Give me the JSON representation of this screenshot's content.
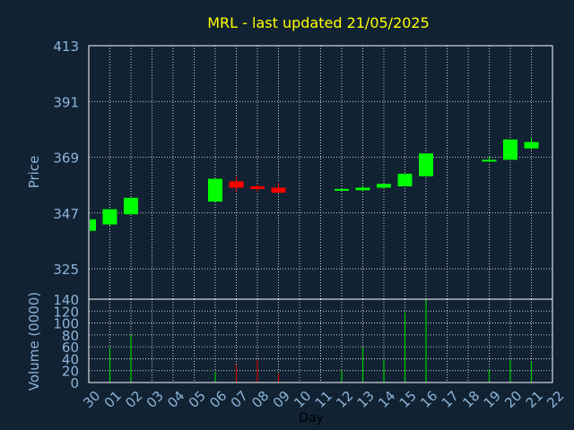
{
  "colors": {
    "background": "#112233",
    "frame": "#ffffff",
    "grid": "#ffffff",
    "title": "#ffff00",
    "label": "#8cb4d8",
    "xlabel": "#000000",
    "up": "#00ff00",
    "down": "#ff0000",
    "volume_up": "#00cc00",
    "volume_down": "#cc0000"
  },
  "chart_data": [
    {
      "type": "candlestick",
      "title": "MRL - last updated 21/05/2025",
      "ylabel": "Price",
      "ylim": [
        313,
        413
      ],
      "yticks": [
        413,
        391,
        369,
        347,
        325
      ],
      "grid": true,
      "x_tick_labels": [
        "30",
        "01",
        "02",
        "03",
        "04",
        "05",
        "06",
        "07",
        "08",
        "09",
        "10",
        "11",
        "12",
        "13",
        "14",
        "15",
        "16",
        "17",
        "18",
        "19",
        "20",
        "21",
        "22"
      ],
      "candles": [
        {
          "x": "30",
          "open": 340.0,
          "close": 344.5,
          "high": 344.5,
          "low": 340.0
        },
        {
          "x": "01",
          "open": 342.5,
          "close": 348.5,
          "high": 348.5,
          "low": 342.0
        },
        {
          "x": "02",
          "open": 346.5,
          "close": 353.0,
          "high": 353.0,
          "low": 346.5
        },
        {
          "x": "06",
          "open": 351.5,
          "close": 360.5,
          "high": 360.5,
          "low": 351.5
        },
        {
          "x": "07",
          "open": 359.5,
          "close": 357.0,
          "high": 361.5,
          "low": 355.5
        },
        {
          "x": "08",
          "open": 357.5,
          "close": 356.5,
          "high": 358.5,
          "low": 355.5
        },
        {
          "x": "09",
          "open": 357.0,
          "close": 355.0,
          "high": 359.0,
          "low": 355.0
        },
        {
          "x": "12",
          "open": 356.0,
          "close": 356.5,
          "high": 356.5,
          "low": 356.0
        },
        {
          "x": "13",
          "open": 356.0,
          "close": 357.0,
          "high": 358.0,
          "low": 355.5
        },
        {
          "x": "14",
          "open": 357.0,
          "close": 358.5,
          "high": 358.5,
          "low": 357.0
        },
        {
          "x": "15",
          "open": 357.5,
          "close": 362.5,
          "high": 362.5,
          "low": 357.5
        },
        {
          "x": "16",
          "open": 361.5,
          "close": 370.5,
          "high": 370.5,
          "low": 361.5
        },
        {
          "x": "19",
          "open": 367.5,
          "close": 368.0,
          "high": 369.5,
          "low": 367.0
        },
        {
          "x": "20",
          "open": 368.0,
          "close": 376.0,
          "high": 376.0,
          "low": 368.0
        },
        {
          "x": "21",
          "open": 372.5,
          "close": 375.0,
          "high": 377.0,
          "low": 372.0
        }
      ]
    },
    {
      "type": "bar",
      "xlabel": "Day",
      "ylabel": "Volume (0000)",
      "ylim": [
        0,
        140
      ],
      "yticks": [
        140,
        120,
        100,
        80,
        60,
        40,
        20,
        0
      ],
      "grid": true,
      "x_tick_labels": [
        "30",
        "01",
        "02",
        "03",
        "04",
        "05",
        "06",
        "07",
        "08",
        "09",
        "10",
        "11",
        "12",
        "13",
        "14",
        "15",
        "16",
        "17",
        "18",
        "19",
        "20",
        "21",
        "22"
      ],
      "bars": [
        {
          "x": "01",
          "value": 58,
          "direction": "up"
        },
        {
          "x": "02",
          "value": 80,
          "direction": "up"
        },
        {
          "x": "06",
          "value": 18,
          "direction": "up"
        },
        {
          "x": "07",
          "value": 30,
          "direction": "down"
        },
        {
          "x": "08",
          "value": 38,
          "direction": "down"
        },
        {
          "x": "09",
          "value": 15,
          "direction": "down"
        },
        {
          "x": "12",
          "value": 20,
          "direction": "up"
        },
        {
          "x": "13",
          "value": 60,
          "direction": "up"
        },
        {
          "x": "14",
          "value": 38,
          "direction": "up"
        },
        {
          "x": "15",
          "value": 118,
          "direction": "up"
        },
        {
          "x": "16",
          "value": 140,
          "direction": "up"
        },
        {
          "x": "19",
          "value": 22,
          "direction": "up"
        },
        {
          "x": "20",
          "value": 38,
          "direction": "up"
        },
        {
          "x": "21",
          "value": 35,
          "direction": "up"
        }
      ]
    }
  ]
}
